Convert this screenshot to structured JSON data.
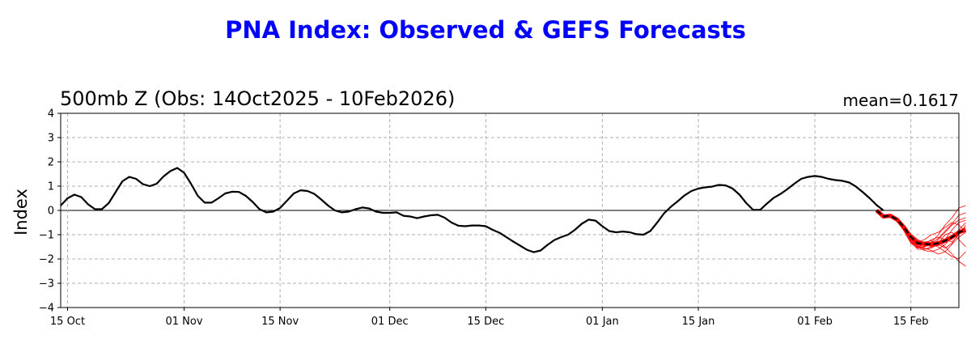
{
  "title": "PNA Index: Observed & GEFS Forecasts",
  "subtitle": "500mb Z (Obs: 14Oct2025 - 10Feb2026)",
  "mean_label": "mean=0.1617",
  "chart_data": {
    "type": "line",
    "ylabel": "Index",
    "ylim": [
      -4,
      4
    ],
    "yticks": [
      -4,
      -3,
      -2,
      -1,
      0,
      1,
      2,
      3,
      4
    ],
    "xlim": [
      "2025-10-14",
      "2026-02-22"
    ],
    "xticks": [
      {
        "date": "2025-10-15",
        "label": "15 Oct"
      },
      {
        "date": "2025-11-01",
        "label": "01 Nov"
      },
      {
        "date": "2025-11-15",
        "label": "15 Nov"
      },
      {
        "date": "2025-12-01",
        "label": "01 Dec"
      },
      {
        "date": "2025-12-15",
        "label": "15 Dec"
      },
      {
        "date": "2026-01-01",
        "label": "01 Jan"
      },
      {
        "date": "2026-01-15",
        "label": "15 Jan"
      },
      {
        "date": "2026-02-01",
        "label": "01 Feb"
      },
      {
        "date": "2026-02-15",
        "label": "15 Feb"
      }
    ],
    "grid": true,
    "colors": {
      "observed": "#000000",
      "members": "#ff0000",
      "ens_mean": "#000000"
    },
    "observed": {
      "start": "2025-10-14",
      "values": [
        0.2,
        0.5,
        0.65,
        0.55,
        0.25,
        0.05,
        0.05,
        0.3,
        0.75,
        1.2,
        1.38,
        1.3,
        1.08,
        1.0,
        1.1,
        1.4,
        1.62,
        1.75,
        1.55,
        1.1,
        0.6,
        0.32,
        0.32,
        0.5,
        0.7,
        0.77,
        0.76,
        0.6,
        0.35,
        0.05,
        -0.08,
        -0.05,
        0.1,
        0.4,
        0.7,
        0.83,
        0.8,
        0.68,
        0.45,
        0.2,
        0.0,
        -0.08,
        -0.05,
        0.05,
        0.12,
        0.08,
        -0.05,
        -0.1,
        -0.1,
        -0.08,
        -0.22,
        -0.25,
        -0.32,
        -0.25,
        -0.2,
        -0.18,
        -0.3,
        -0.5,
        -0.63,
        -0.65,
        -0.62,
        -0.62,
        -0.65,
        -0.8,
        -0.92,
        -1.1,
        -1.28,
        -1.45,
        -1.62,
        -1.72,
        -1.65,
        -1.42,
        -1.22,
        -1.1,
        -1.0,
        -0.8,
        -0.55,
        -0.38,
        -0.42,
        -0.65,
        -0.85,
        -0.9,
        -0.87,
        -0.9,
        -0.98,
        -1.0,
        -0.85,
        -0.5,
        -0.12,
        0.15,
        0.38,
        0.62,
        0.8,
        0.9,
        0.95,
        0.98,
        1.05,
        1.03,
        0.9,
        0.65,
        0.3,
        0.02,
        0.02,
        0.28,
        0.52,
        0.68,
        0.88,
        1.1,
        1.3,
        1.38,
        1.42,
        1.38,
        1.3,
        1.25,
        1.22,
        1.15,
        0.98,
        0.75,
        0.5,
        0.22,
        0.0
      ]
    },
    "ensemble_mean": {
      "start": "2026-02-10",
      "values": [
        0.0,
        -0.25,
        -0.22,
        -0.38,
        -0.7,
        -1.1,
        -1.35,
        -1.38,
        -1.4,
        -1.35,
        -1.25,
        -1.1,
        -0.9,
        -0.8
      ]
    },
    "members": [
      {
        "start": "2026-02-10",
        "values": [
          0.0,
          -0.25,
          -0.2,
          -0.35,
          -0.75,
          -1.2,
          -1.5,
          -1.65,
          -1.7,
          -1.6,
          -1.4,
          -1.1,
          -0.8,
          -0.5
        ]
      },
      {
        "start": "2026-02-10",
        "values": [
          0.0,
          -0.28,
          -0.25,
          -0.42,
          -0.8,
          -1.3,
          -1.6,
          -1.6,
          -1.5,
          -1.2,
          -0.9,
          -0.6,
          -0.4,
          -0.3
        ]
      },
      {
        "start": "2026-02-10",
        "values": [
          0.0,
          -0.22,
          -0.18,
          -0.3,
          -0.6,
          -1.0,
          -1.25,
          -1.3,
          -1.4,
          -1.5,
          -1.7,
          -1.9,
          -2.0,
          -1.7
        ]
      },
      {
        "start": "2026-02-10",
        "values": [
          0.0,
          -0.24,
          -0.22,
          -0.36,
          -0.68,
          -1.05,
          -1.3,
          -1.2,
          -1.0,
          -0.9,
          -0.7,
          -0.5,
          -0.6,
          -0.9
        ]
      },
      {
        "start": "2026-02-10",
        "values": [
          0.0,
          -0.26,
          -0.28,
          -0.45,
          -0.85,
          -1.35,
          -1.55,
          -1.5,
          -1.4,
          -1.3,
          -1.5,
          -1.8,
          -2.1,
          -2.3
        ]
      },
      {
        "start": "2026-02-10",
        "values": [
          0.0,
          -0.23,
          -0.2,
          -0.33,
          -0.65,
          -1.1,
          -1.4,
          -1.45,
          -1.3,
          -1.0,
          -0.6,
          -0.3,
          0.1,
          0.2
        ]
      },
      {
        "start": "2026-02-10",
        "values": [
          0.0,
          -0.27,
          -0.24,
          -0.4,
          -0.72,
          -1.15,
          -1.45,
          -1.55,
          -1.65,
          -1.8,
          -1.7,
          -1.4,
          -1.1,
          -0.9
        ]
      },
      {
        "start": "2026-02-10",
        "values": [
          0.0,
          -0.25,
          -0.26,
          -0.43,
          -0.78,
          -1.25,
          -1.5,
          -1.4,
          -1.2,
          -1.1,
          -1.2,
          -1.3,
          -1.0,
          -0.6
        ]
      },
      {
        "start": "2026-02-10",
        "values": [
          0.0,
          -0.24,
          -0.21,
          -0.34,
          -0.62,
          -0.98,
          -1.2,
          -1.35,
          -1.5,
          -1.45,
          -1.2,
          -0.8,
          -0.5,
          -0.4
        ]
      },
      {
        "start": "2026-02-10",
        "values": [
          0.0,
          -0.26,
          -0.23,
          -0.39,
          -0.74,
          -1.2,
          -1.45,
          -1.6,
          -1.55,
          -1.35,
          -1.0,
          -0.9,
          -1.2,
          -1.5
        ]
      },
      {
        "start": "2026-02-10",
        "values": [
          0.0,
          -0.25,
          -0.22,
          -0.37,
          -0.7,
          -1.12,
          -1.38,
          -1.3,
          -1.25,
          -1.4,
          -1.55,
          -1.35,
          -0.95,
          -0.7
        ]
      },
      {
        "start": "2026-02-10",
        "values": [
          0.0,
          -0.27,
          -0.26,
          -0.41,
          -0.76,
          -1.28,
          -1.52,
          -1.48,
          -1.35,
          -1.15,
          -0.85,
          -0.55,
          -0.2,
          -0.1
        ]
      }
    ]
  }
}
